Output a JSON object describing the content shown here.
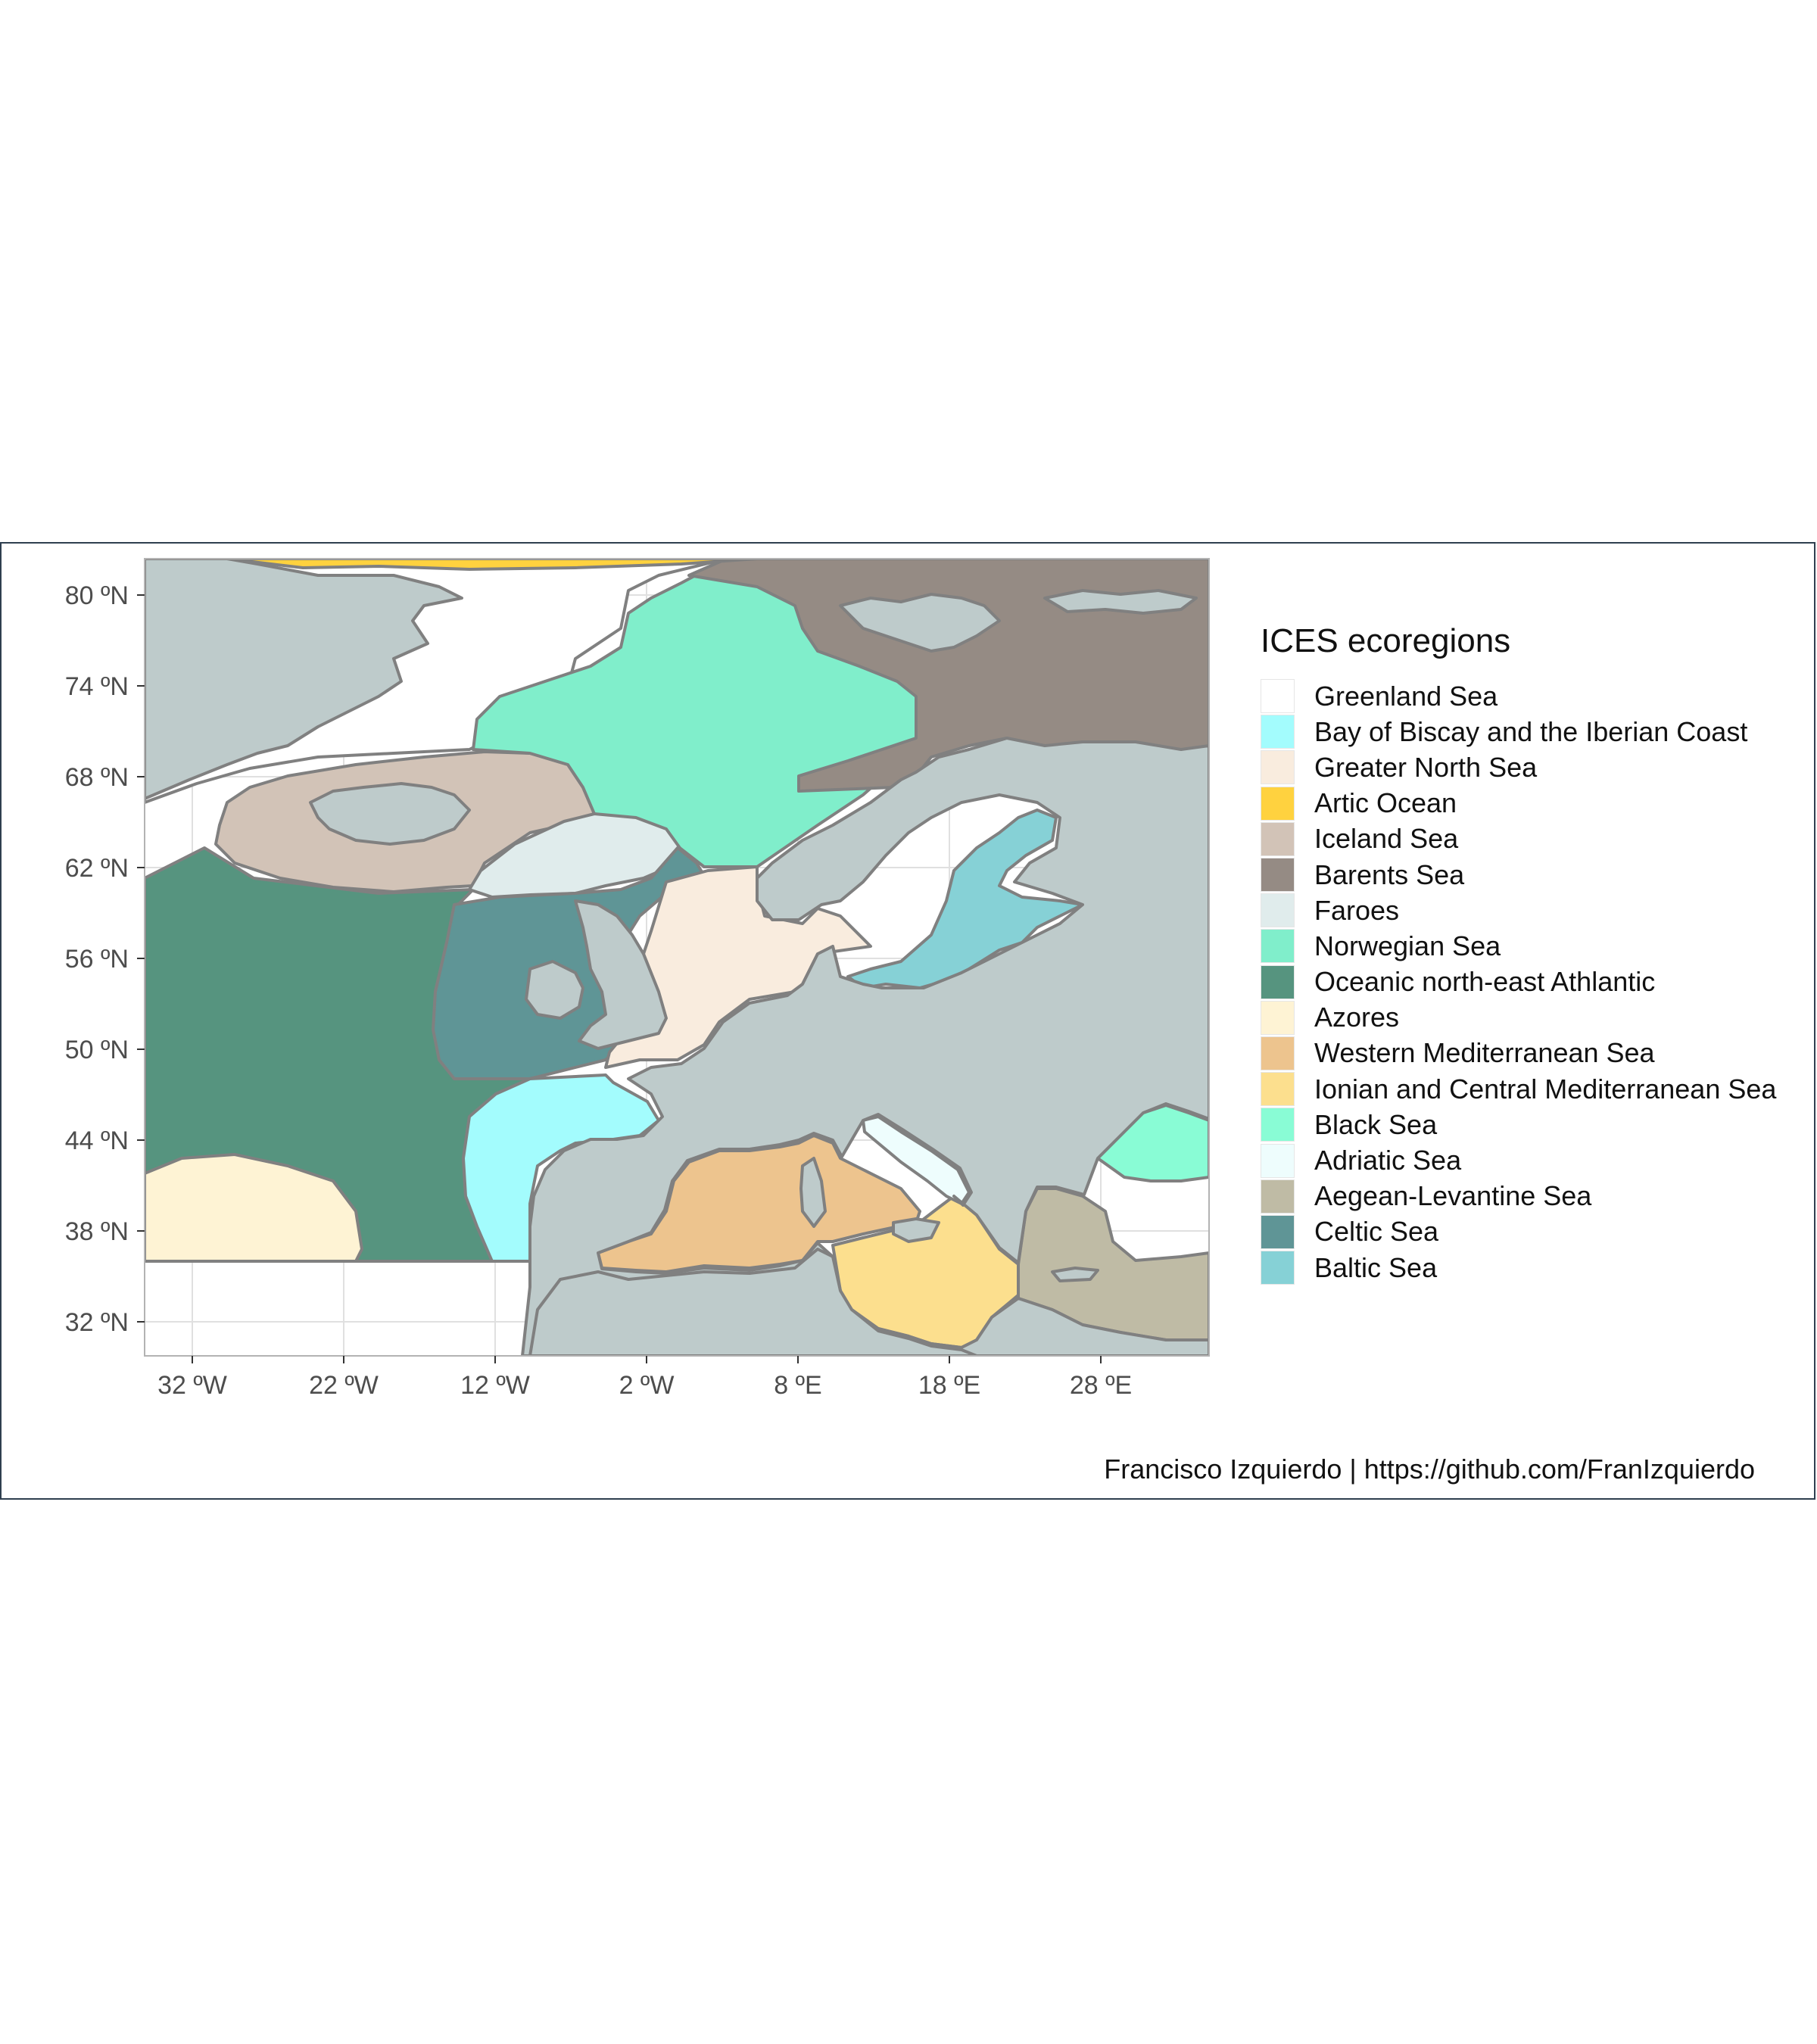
{
  "legend": {
    "title": "ICES ecoregions",
    "items": [
      {
        "label": "Greenland Sea",
        "color": "#FFFFFF"
      },
      {
        "label": "Bay of Biscay and the Iberian Coast",
        "color": "#A3FCFD"
      },
      {
        "label": "Greater North Sea",
        "color": "#F9ECDE"
      },
      {
        "label": "Artic Ocean",
        "color": "#FFD23F"
      },
      {
        "label": "Iceland Sea",
        "color": "#D2C3B7"
      },
      {
        "label": "Barents Sea",
        "color": "#958B84"
      },
      {
        "label": "Faroes",
        "color": "#E0ECEC"
      },
      {
        "label": "Norwegian Sea",
        "color": "#80EECB"
      },
      {
        "label": "Oceanic north-east Athlantic",
        "color": "#56947F"
      },
      {
        "label": "Azores",
        "color": "#FEF3D4"
      },
      {
        "label": "Western Mediterranean Sea",
        "color": "#EDC48E"
      },
      {
        "label": "Ionian and Central Mediterranean Sea",
        "color": "#FCDF8E"
      },
      {
        "label": "Black Sea",
        "color": "#89FCD5"
      },
      {
        "label": "Adriatic Sea",
        "color": "#EEFDFD"
      },
      {
        "label": "Aegean-Levantine Sea",
        "color": "#BFBBA5"
      },
      {
        "label": "Celtic Sea",
        "color": "#5F9596"
      },
      {
        "label": "Baltic Sea",
        "color": "#86D1D6"
      }
    ]
  },
  "axes": {
    "x_ticks": [
      "32 ºW",
      "22 ºW",
      "12 ºW",
      "2 ºW",
      "8 ºE",
      "18 ºE",
      "28 ºE"
    ],
    "y_ticks": [
      "80 ºN",
      "74 ºN",
      "68 ºN",
      "62 ºN",
      "56 ºN",
      "50 ºN",
      "44 ºN",
      "38 ºN",
      "32 ºN"
    ]
  },
  "caption": "Francisco Izquierdo | https://github.com/FranIzquierdo",
  "colors": {
    "land": "#BECBCB",
    "border": "#808080",
    "panel_border": "#B3B3B3",
    "gridline": "#E0E0E0"
  }
}
